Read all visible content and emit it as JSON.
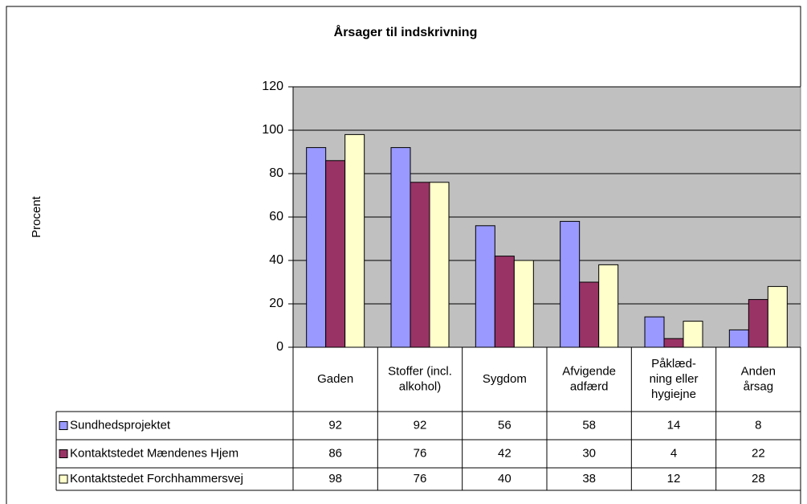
{
  "chart_data": {
    "type": "bar",
    "title": "Årsager til indskrivning",
    "y_label": "Procent",
    "categories": [
      "Gaden",
      "Stoffer (incl.\nalkohol)",
      "Sygdom",
      "Afvigende\nadfærd",
      "Påklæd-\nning eller\nhygiejne",
      "Anden\nårsag"
    ],
    "series": [
      {
        "name": "Sundhedsprojektet",
        "color": "#9999ff",
        "values": [
          92,
          92,
          56,
          58,
          14,
          8
        ]
      },
      {
        "name": "Kontaktstedet Mændenes Hjem",
        "color": "#993366",
        "values": [
          86,
          76,
          42,
          30,
          4,
          22
        ]
      },
      {
        "name": "Kontaktstedet Forchhammersvej",
        "color": "#ffffcc",
        "values": [
          98,
          76,
          40,
          38,
          12,
          28
        ]
      }
    ],
    "ylim": [
      0,
      120
    ],
    "yticks": [
      0,
      20,
      40,
      60,
      80,
      100,
      120
    ],
    "grid": true,
    "plot_background": "#c0c0c0"
  }
}
